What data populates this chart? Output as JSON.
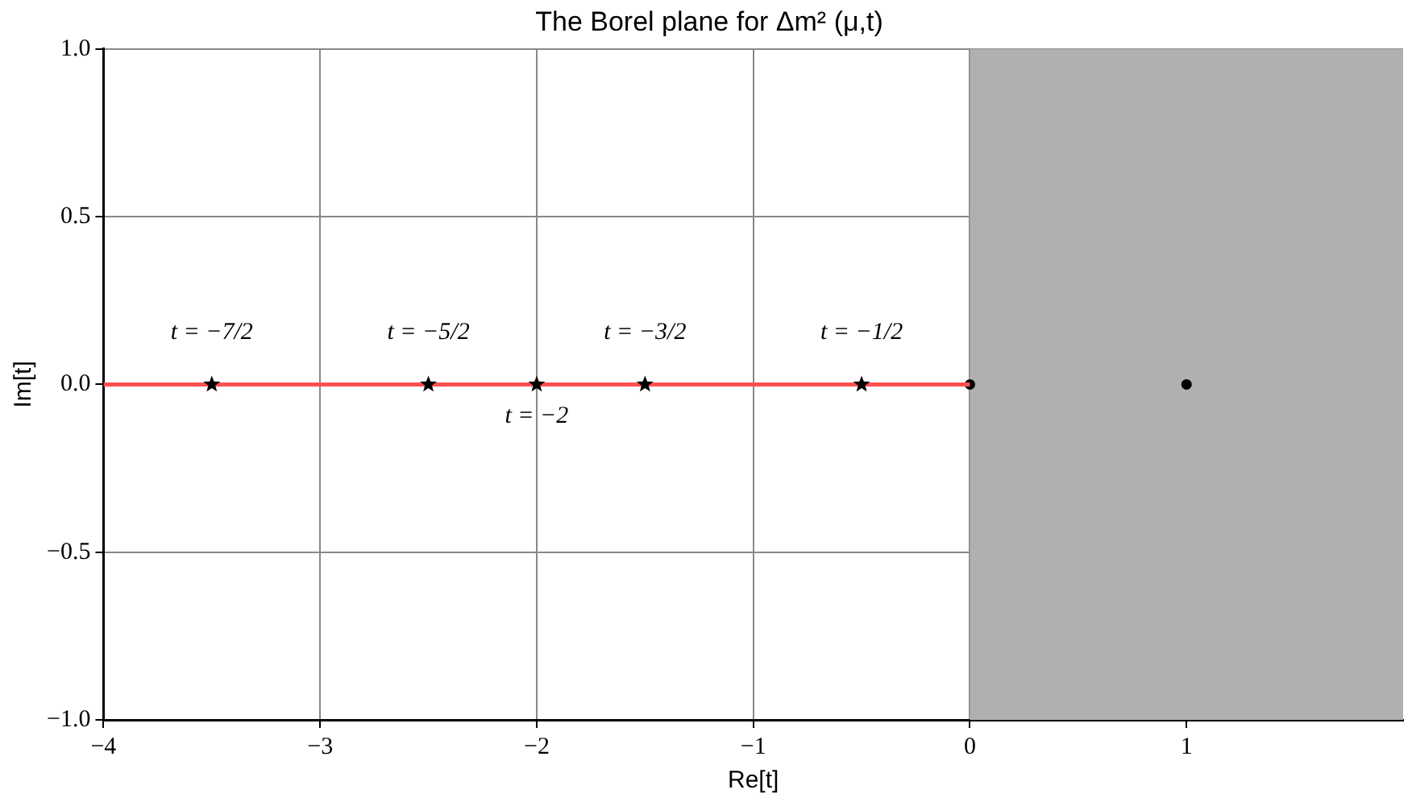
{
  "chart_data": {
    "type": "scatter",
    "title": "The Borel plane for Δm² (μ,t)",
    "xlabel": "Re[t]",
    "ylabel": "Im[t]",
    "xlim": [
      -4,
      2
    ],
    "ylim": [
      -1,
      1
    ],
    "xticks": [
      {
        "value": -4,
        "label": "−4"
      },
      {
        "value": -3,
        "label": "−3"
      },
      {
        "value": -2,
        "label": "−2"
      },
      {
        "value": -1,
        "label": "−1"
      },
      {
        "value": 0,
        "label": "0"
      },
      {
        "value": 1,
        "label": "1"
      }
    ],
    "yticks": [
      {
        "value": -1,
        "label": "−1.0"
      },
      {
        "value": -0.5,
        "label": "−0.5"
      },
      {
        "value": 0,
        "label": "0.0"
      },
      {
        "value": 0.5,
        "label": "0.5"
      },
      {
        "value": 1,
        "label": "1.0"
      }
    ],
    "grid": true,
    "legend": false,
    "bands": [
      {
        "axis": "x",
        "from": 0,
        "to": 2,
        "color": "#b0b0b0"
      }
    ],
    "series": [
      {
        "type": "line",
        "color": "#ff5050",
        "marker": "none",
        "line_style": "solid",
        "x": [
          -4,
          0
        ],
        "values": [
          0,
          0
        ]
      },
      {
        "type": "scatter",
        "color": "#000000",
        "marker": "star",
        "x": [
          -3.5,
          -2.5,
          -2,
          -1.5,
          -0.5
        ],
        "values": [
          0,
          0,
          0,
          0,
          0
        ]
      },
      {
        "type": "scatter",
        "color": "#000000",
        "marker": "circle",
        "x": [
          0,
          1
        ],
        "values": [
          0,
          0
        ]
      }
    ],
    "annotations": [
      {
        "text": "t = −7/2",
        "x": -3.5,
        "y": 0
      },
      {
        "text": "t = −5/2",
        "x": -2.5,
        "y": 0
      },
      {
        "text": "t = −3/2",
        "x": -1.5,
        "y": 0
      },
      {
        "text": "t = −1/2",
        "x": -0.5,
        "y": 0
      },
      {
        "text": "t = −2",
        "x": -2,
        "y": 0
      }
    ]
  }
}
